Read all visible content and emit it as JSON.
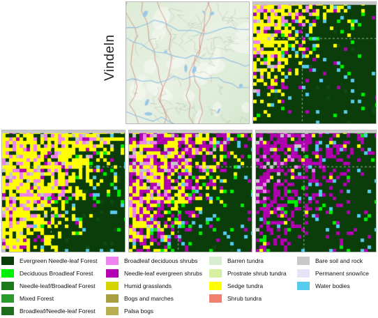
{
  "region": {
    "label": "Vindeln"
  },
  "panels": [
    {
      "id": "topo",
      "kind": "topographic"
    },
    {
      "id": "map-1",
      "kind": "vegetation",
      "colors": {
        "forest": "#0a3d0a",
        "sedge": "#ffff00",
        "broadleaf_shrubs": "#ee82ee",
        "needleleaf_shrubs": "#b000b0",
        "water": "#55ccee",
        "bare": "#c8c8c8"
      }
    },
    {
      "id": "map-2",
      "kind": "vegetation"
    },
    {
      "id": "map-3",
      "kind": "vegetation"
    },
    {
      "id": "map-4",
      "kind": "vegetation"
    }
  ],
  "legend": {
    "columns": [
      [
        {
          "label": "Evergreen Needle-leaf Forest",
          "color": "#0a3d0a"
        },
        {
          "label": "Deciduous Broadleaf Forest",
          "color": "#00ee00"
        },
        {
          "label": "Needle-leaf/Broadleaf Forest",
          "color": "#1a7a1a"
        },
        {
          "label": "Mixed Forest",
          "color": "#2a9a2a"
        },
        {
          "label": "Broadleaf/Needle-leaf Forest",
          "color": "#1e6e1e"
        }
      ],
      [
        {
          "label": "Broadleaf deciduous shrubs",
          "color": "#ee82ee"
        },
        {
          "label": "Needle-leaf evergreen shrubs",
          "color": "#b000b0"
        },
        {
          "label": "Humid grasslands",
          "color": "#d4d400"
        },
        {
          "label": "Bogs and marches",
          "color": "#a8a040"
        },
        {
          "label": "Palsa bogs",
          "color": "#b8b050"
        }
      ],
      [
        {
          "label": "Barren tundra",
          "color": "#d8ecd0"
        },
        {
          "label": "Prostrate shrub tundra",
          "color": "#d4f0a0"
        },
        {
          "label": "Sedge tundra",
          "color": "#ffff00"
        },
        {
          "label": "Shrub tundra",
          "color": "#f08070"
        }
      ],
      [
        {
          "label": "Bare soil and rock",
          "color": "#c8c8c8"
        },
        {
          "label": "Permanent snow/ice",
          "color": "#e8e4f8"
        },
        {
          "label": "Water bodies",
          "color": "#55ccee"
        }
      ]
    ]
  }
}
